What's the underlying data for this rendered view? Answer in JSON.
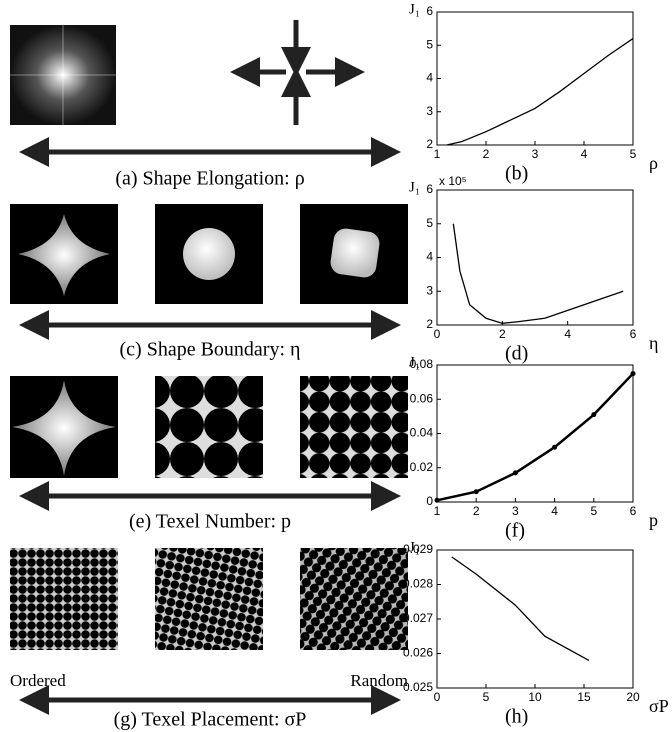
{
  "figure": {
    "captions": [
      "(a) Shape Elongation: ρ",
      "(c) Shape Boundary: η",
      "(e) Texel Number: p",
      "(g) Texel Placement: σP"
    ],
    "placement_labels": [
      "Ordered",
      "Random"
    ]
  },
  "chart_data": [
    {
      "type": "line",
      "panel_label": "(b)",
      "y_label": "J₁",
      "x_label": "ρ",
      "color": "#000000",
      "markers": false,
      "x": [
        1.2,
        1.5,
        2,
        2.5,
        3,
        3.5,
        4,
        4.5,
        5
      ],
      "values": [
        2.0,
        2.1,
        2.4,
        2.75,
        3.1,
        3.6,
        4.15,
        4.7,
        5.2
      ],
      "xlim": [
        1,
        5
      ],
      "ylim": [
        2,
        6
      ],
      "xticks": [
        1,
        2,
        3,
        4,
        5
      ],
      "yticks": [
        2,
        3,
        4,
        5,
        6
      ]
    },
    {
      "type": "line",
      "panel_label": "(d)",
      "y_label": "J₁",
      "y_multiplier": "x 10⁵",
      "x_label": "η",
      "color": "#000000",
      "markers": false,
      "x": [
        0.5,
        0.7,
        1,
        1.5,
        2,
        2.5,
        3.3,
        4.5,
        5.7
      ],
      "values": [
        5.0,
        3.6,
        2.6,
        2.2,
        2.05,
        2.1,
        2.2,
        2.6,
        3.0
      ],
      "xlim": [
        0,
        6
      ],
      "ylim": [
        2,
        6
      ],
      "xticks": [
        0,
        2,
        4,
        6
      ],
      "yticks": [
        2,
        3,
        4,
        5,
        6
      ]
    },
    {
      "type": "line",
      "panel_label": "(f)",
      "y_label": "J₁",
      "x_label": "p",
      "color": "#000000",
      "markers": true,
      "x": [
        1,
        2,
        3,
        4,
        5,
        6
      ],
      "values": [
        0.001,
        0.006,
        0.017,
        0.032,
        0.051,
        0.075
      ],
      "xlim": [
        1,
        6
      ],
      "ylim": [
        0,
        0.08
      ],
      "xticks": [
        1,
        2,
        3,
        4,
        5,
        6
      ],
      "yticks": [
        0,
        0.02,
        0.04,
        0.06,
        0.08
      ]
    },
    {
      "type": "line",
      "panel_label": "(h)",
      "y_label": "J₁",
      "x_label": "σP",
      "color": "#000000",
      "markers": false,
      "x": [
        1.5,
        4,
        8,
        11,
        15.5
      ],
      "values": [
        0.0288,
        0.0283,
        0.0274,
        0.0265,
        0.0258
      ],
      "xlim": [
        0,
        20
      ],
      "ylim": [
        0.025,
        0.029
      ],
      "xticks": [
        0,
        5,
        10,
        15,
        20
      ],
      "yticks": [
        0.025,
        0.026,
        0.027,
        0.028,
        0.029
      ]
    }
  ]
}
